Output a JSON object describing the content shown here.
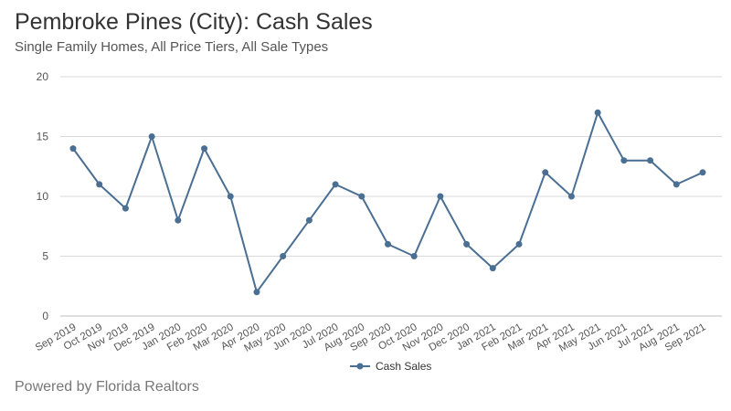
{
  "header": {
    "title": "Pembroke Pines (City): Cash Sales",
    "subtitle": "Single Family Homes, All Price Tiers, All Sale Types"
  },
  "footer": {
    "text": "Powered by Florida Realtors"
  },
  "colors": {
    "series": "#4a6f93",
    "grid": "#d9d9d9",
    "axis_text": "#555555"
  },
  "chart_data": {
    "type": "line",
    "title": "Pembroke Pines (City): Cash Sales",
    "subtitle": "Single Family Homes, All Price Tiers, All Sale Types",
    "xlabel": "",
    "ylabel": "",
    "ylim": [
      0,
      20
    ],
    "yticks": [
      0,
      5,
      10,
      15,
      20
    ],
    "grid": true,
    "legend_position": "bottom",
    "categories": [
      "Sep 2019",
      "Oct 2019",
      "Nov 2019",
      "Dec 2019",
      "Jan 2020",
      "Feb 2020",
      "Mar 2020",
      "Apr 2020",
      "May 2020",
      "Jun 2020",
      "Jul 2020",
      "Aug 2020",
      "Sep 2020",
      "Oct 2020",
      "Nov 2020",
      "Dec 2020",
      "Jan 2021",
      "Feb 2021",
      "Mar 2021",
      "Apr 2021",
      "May 2021",
      "Jun 2021",
      "Jul 2021",
      "Aug 2021",
      "Sep 2021"
    ],
    "series": [
      {
        "name": "Cash Sales",
        "values": [
          14,
          11,
          9,
          15,
          8,
          14,
          10,
          2,
          5,
          8,
          11,
          10,
          6,
          5,
          10,
          6,
          4,
          6,
          12,
          10,
          17,
          13,
          13,
          11,
          12
        ]
      }
    ]
  }
}
